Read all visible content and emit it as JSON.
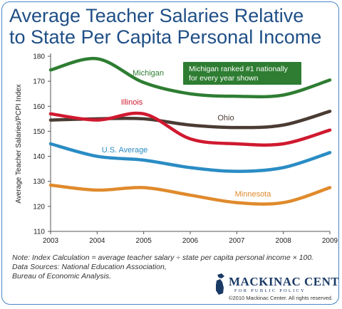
{
  "chart_data": {
    "type": "line",
    "title": [
      "Average Teacher Salaries Relative",
      "to State Per Capita Personal Income"
    ],
    "xlabel": "",
    "ylabel": "Average Teacher Salaries/PCPI Index",
    "x": [
      "2003",
      "2004",
      "2005",
      "2006",
      "2007",
      "2008",
      "2009"
    ],
    "yticks": [
      110,
      120,
      130,
      140,
      150,
      160,
      170,
      180
    ],
    "ylim": [
      110,
      180
    ],
    "grid": false,
    "series": [
      {
        "name": "Michigan",
        "color": "#2e7d32",
        "values": [
          174.5,
          179,
          169.5,
          165,
          164,
          164.5,
          170.5
        ]
      },
      {
        "name": "Ohio",
        "color": "#4a3b33",
        "values": [
          154.5,
          155,
          155,
          152.5,
          151.5,
          152.5,
          158
        ]
      },
      {
        "name": "Illinois",
        "color": "#d0192f",
        "values": [
          157,
          154.5,
          157,
          147,
          145,
          145,
          150.5
        ]
      },
      {
        "name": "U.S. Average",
        "color": "#2a8cc4",
        "values": [
          145,
          140,
          138.5,
          135.5,
          134,
          135.5,
          141.5
        ]
      },
      {
        "name": "Minnesota",
        "color": "#e08a2c",
        "values": [
          128.5,
          126.5,
          127.5,
          124.5,
          121.5,
          121.5,
          127.5
        ]
      }
    ],
    "annotation": [
      "Michigan ranked #1 nationally",
      "for every year shown"
    ]
  },
  "note": {
    "lines": [
      "Note: Index Calculation = average teacher salary ÷ state per capita personal income × 100.",
      "Data Sources: National Education Association,",
      "Bureau of Economic Analysis."
    ]
  },
  "logo": {
    "name": "MACKINAC CENTER",
    "tagline": "FOR PUBLIC POLICY",
    "copyright": "©2010 Mackinac Center. All rights reserved."
  }
}
